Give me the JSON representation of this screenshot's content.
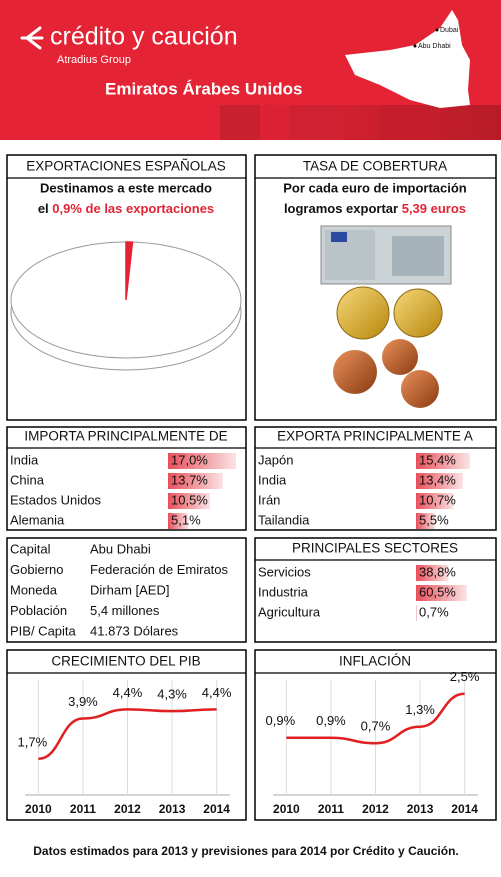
{
  "header": {
    "brand": "crédito y caución",
    "group": "Atradius Group",
    "country": "Emiratos Árabes Unidos",
    "map_labels": [
      "Dubai",
      "Abu Dhabi"
    ]
  },
  "coverage": {
    "title": "TASA DE COBERTURA",
    "line1": "Por cada euro de importación",
    "line2": "logramos exportar",
    "highlight": "5,39 euros"
  },
  "profile": {
    "rows": [
      [
        "Capital",
        "Abu Dhabi"
      ],
      [
        "Gobierno",
        "Federación de Emiratos"
      ],
      [
        "Moneda",
        "Dirham [AED]"
      ],
      [
        "Población",
        "5,4 millones"
      ],
      [
        "PIB/ Capita",
        "41.873 Dólares"
      ]
    ]
  },
  "footer": "Datos estimados para 2013 y previsiones para 2014 por Crédito y Caución.",
  "chart_data": [
    {
      "type": "pie",
      "title": "EXPORTACIONES ESPAÑOLAS",
      "subtitle": "Destinamos a este mercado",
      "note_prefix": "el",
      "note": "0,9% de las exportaciones",
      "values": [
        0.9
      ],
      "color": "#e42334"
    },
    {
      "type": "hbar",
      "title": "IMPORTA PRINCIPALMENTE DE",
      "categories": [
        "India",
        "China",
        "Estados Unidos",
        "Alemania"
      ],
      "values": [
        17.0,
        13.7,
        10.5,
        5.1
      ],
      "value_labels": [
        "17,0%",
        "13,7%",
        "10,5%",
        "5,1%"
      ],
      "xlim": [
        0,
        18
      ],
      "color": "#e8505a"
    },
    {
      "type": "hbar",
      "title": "EXPORTA PRINCIPALMENTE A",
      "categories": [
        "Japón",
        "India",
        "Irán",
        "Tailandia"
      ],
      "values": [
        15.4,
        13.4,
        10.7,
        5.5
      ],
      "value_labels": [
        "15,4%",
        "13,4%",
        "10,7%",
        "5,5%"
      ],
      "xlim": [
        0,
        16
      ],
      "color": "#e8505a"
    },
    {
      "type": "hbar",
      "title": "PRINCIPALES SECTORES",
      "categories": [
        "Servicios",
        "Industria",
        "Agricultura"
      ],
      "values": [
        38.8,
        60.5,
        0.7
      ],
      "value_labels": [
        "38,8%",
        "60,5%",
        "0,7%"
      ],
      "xlim": [
        0,
        62
      ],
      "color": "#e8505a"
    },
    {
      "type": "line",
      "title": "CRECIMIENTO DEL PIB",
      "x": [
        2010,
        2011,
        2012,
        2013,
        2014
      ],
      "values": [
        1.7,
        3.9,
        4.4,
        4.3,
        4.4
      ],
      "value_labels": [
        "1,7%",
        "3,9%",
        "4,4%",
        "4,3%",
        "4,4%"
      ],
      "xlim": [
        2009.7,
        2014.3
      ],
      "ylim": [
        0,
        6
      ],
      "color": "#e02020"
    },
    {
      "type": "line",
      "title": "INFLACIÓN",
      "x": [
        2010,
        2011,
        2012,
        2013,
        2014
      ],
      "values": [
        0.9,
        0.9,
        0.7,
        1.3,
        2.5
      ],
      "value_labels": [
        "0,9%",
        "0,9%",
        "0,7%",
        "1,3%",
        "2,5%"
      ],
      "xlim": [
        2009.7,
        2014.3
      ],
      "ylim": [
        -1,
        3
      ],
      "color": "#e02020"
    }
  ]
}
